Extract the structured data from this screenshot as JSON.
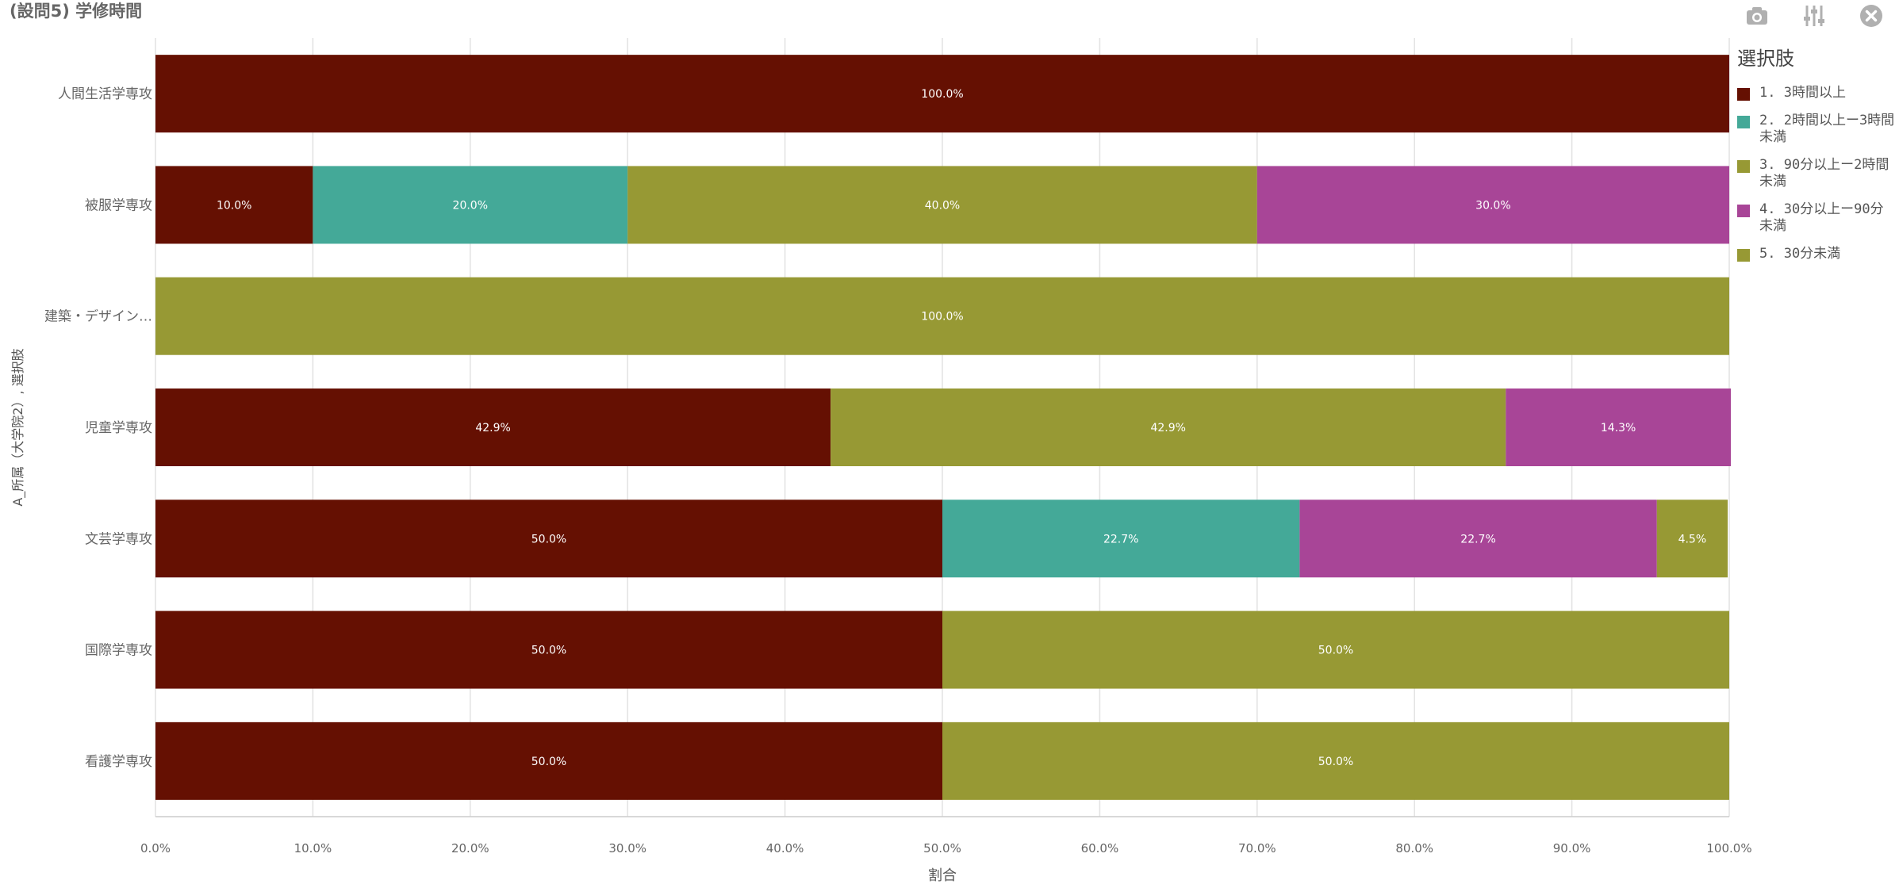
{
  "title": "(設問5) 学修時間",
  "toolbar": {
    "icons": [
      "camera-icon",
      "sliders-icon",
      "close-icon"
    ]
  },
  "legend": {
    "title": "選択肢",
    "items": [
      {
        "label": "1. 3時間以上",
        "color": "#651002"
      },
      {
        "label": "2. 2時間以上ー3時間未満",
        "color": "#44a998"
      },
      {
        "label": "3. 90分以上ー2時間未満",
        "color": "#979934"
      },
      {
        "label": "4. 30分以上ー90分未満",
        "color": "#a84597"
      },
      {
        "label": "5. 30分未満",
        "color": "#979934"
      }
    ]
  },
  "chart_data": {
    "type": "bar",
    "orientation": "horizontal",
    "stacked": true,
    "title": "(設問5) 学修時間",
    "xlabel": "割合",
    "ylabel": "A_所属（大学院2）, 選択肢",
    "xlim": [
      0,
      100
    ],
    "x_ticks": [
      "0.0%",
      "10.0%",
      "20.0%",
      "30.0%",
      "40.0%",
      "50.0%",
      "60.0%",
      "70.0%",
      "80.0%",
      "90.0%",
      "100.0%"
    ],
    "categories": [
      "人間生活学専攻",
      "被服学専攻",
      "建築・デザイン…",
      "児童学専攻",
      "文芸学専攻",
      "国際学専攻",
      "看護学専攻"
    ],
    "series": [
      {
        "name": "1. 3時間以上",
        "color": "#651002",
        "values": [
          100,
          10,
          0,
          42.9,
          50,
          50,
          50
        ]
      },
      {
        "name": "2. 2時間以上ー3時間未満",
        "color": "#44a998",
        "values": [
          0,
          20,
          0,
          0,
          22.7,
          0,
          0
        ]
      },
      {
        "name": "3. 90分以上ー2時間未満",
        "color": "#979934",
        "values": [
          0,
          40,
          100,
          42.9,
          0,
          50,
          50
        ]
      },
      {
        "name": "4. 30分以上ー90分未満",
        "color": "#a84597",
        "values": [
          0,
          30,
          0,
          14.3,
          22.7,
          0,
          0
        ]
      },
      {
        "name": "5. 30分未満",
        "color": "#979934",
        "values": [
          0,
          0,
          0,
          0,
          4.5,
          0,
          0
        ]
      }
    ],
    "grid": true,
    "legend_position": "right"
  }
}
